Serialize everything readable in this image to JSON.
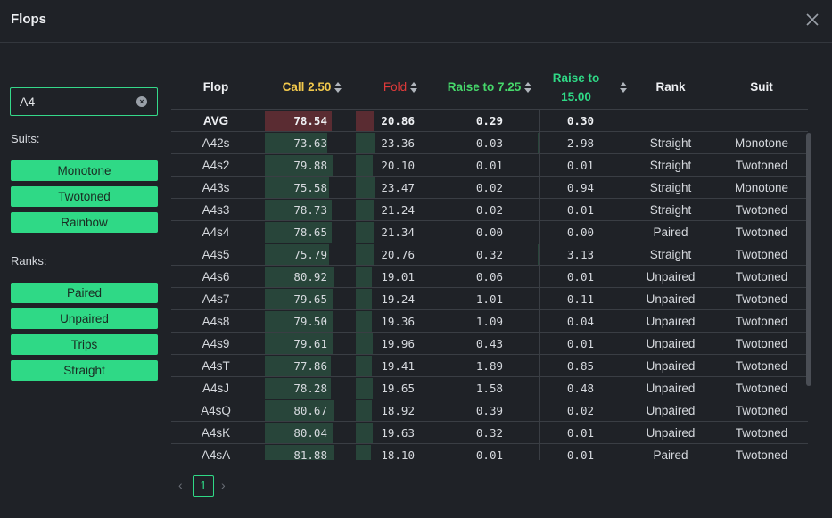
{
  "window": {
    "title": "Flops"
  },
  "search": {
    "value": "A4",
    "placeholder": ""
  },
  "sidebar": {
    "suits_label": "Suits:",
    "suits": [
      "Monotone",
      "Twotoned",
      "Rainbow"
    ],
    "ranks_label": "Ranks:",
    "ranks": [
      "Paired",
      "Unpaired",
      "Trips",
      "Straight"
    ]
  },
  "table": {
    "columns": [
      "Flop",
      "Call 2.50",
      "Fold",
      "Raise to 7.25",
      "Raise to 15.00",
      "Rank",
      "Suit"
    ],
    "avg": {
      "flop": "AVG",
      "call": "78.54",
      "fold": "20.86",
      "raise1": "0.29",
      "raise2": "0.30"
    },
    "rows": [
      {
        "flop": "A42s",
        "call": "73.63",
        "fold": "23.36",
        "raise1": "0.03",
        "raise2": "2.98",
        "rank": "Straight",
        "suit": "Monotone"
      },
      {
        "flop": "A4s2",
        "call": "79.88",
        "fold": "20.10",
        "raise1": "0.01",
        "raise2": "0.01",
        "rank": "Straight",
        "suit": "Twotoned"
      },
      {
        "flop": "A43s",
        "call": "75.58",
        "fold": "23.47",
        "raise1": "0.02",
        "raise2": "0.94",
        "rank": "Straight",
        "suit": "Monotone"
      },
      {
        "flop": "A4s3",
        "call": "78.73",
        "fold": "21.24",
        "raise1": "0.02",
        "raise2": "0.01",
        "rank": "Straight",
        "suit": "Twotoned"
      },
      {
        "flop": "A4s4",
        "call": "78.65",
        "fold": "21.34",
        "raise1": "0.00",
        "raise2": "0.00",
        "rank": "Paired",
        "suit": "Twotoned"
      },
      {
        "flop": "A4s5",
        "call": "75.79",
        "fold": "20.76",
        "raise1": "0.32",
        "raise2": "3.13",
        "rank": "Straight",
        "suit": "Twotoned"
      },
      {
        "flop": "A4s6",
        "call": "80.92",
        "fold": "19.01",
        "raise1": "0.06",
        "raise2": "0.01",
        "rank": "Unpaired",
        "suit": "Twotoned"
      },
      {
        "flop": "A4s7",
        "call": "79.65",
        "fold": "19.24",
        "raise1": "1.01",
        "raise2": "0.11",
        "rank": "Unpaired",
        "suit": "Twotoned"
      },
      {
        "flop": "A4s8",
        "call": "79.50",
        "fold": "19.36",
        "raise1": "1.09",
        "raise2": "0.04",
        "rank": "Unpaired",
        "suit": "Twotoned"
      },
      {
        "flop": "A4s9",
        "call": "79.61",
        "fold": "19.96",
        "raise1": "0.43",
        "raise2": "0.01",
        "rank": "Unpaired",
        "suit": "Twotoned"
      },
      {
        "flop": "A4sT",
        "call": "77.86",
        "fold": "19.41",
        "raise1": "1.89",
        "raise2": "0.85",
        "rank": "Unpaired",
        "suit": "Twotoned"
      },
      {
        "flop": "A4sJ",
        "call": "78.28",
        "fold": "19.65",
        "raise1": "1.58",
        "raise2": "0.48",
        "rank": "Unpaired",
        "suit": "Twotoned"
      },
      {
        "flop": "A4sQ",
        "call": "80.67",
        "fold": "18.92",
        "raise1": "0.39",
        "raise2": "0.02",
        "rank": "Unpaired",
        "suit": "Twotoned"
      },
      {
        "flop": "A4sK",
        "call": "80.04",
        "fold": "19.63",
        "raise1": "0.32",
        "raise2": "0.01",
        "rank": "Unpaired",
        "suit": "Twotoned"
      },
      {
        "flop": "A4sA",
        "call": "81.88",
        "fold": "18.10",
        "raise1": "0.01",
        "raise2": "0.01",
        "rank": "Paired",
        "suit": "Twotoned"
      }
    ]
  },
  "pagination": {
    "current": "1"
  },
  "colors": {
    "accent": "#2fd986",
    "call": "#f2c94c",
    "fold": "#e03a3a",
    "raise1": "#46d86b",
    "raise2": "#2fd986",
    "bar_call": "#28453a",
    "bar_call_avg": "#5a2c32",
    "bar_fold": "#28453a",
    "bar_fold_avg": "#5a2c32"
  }
}
